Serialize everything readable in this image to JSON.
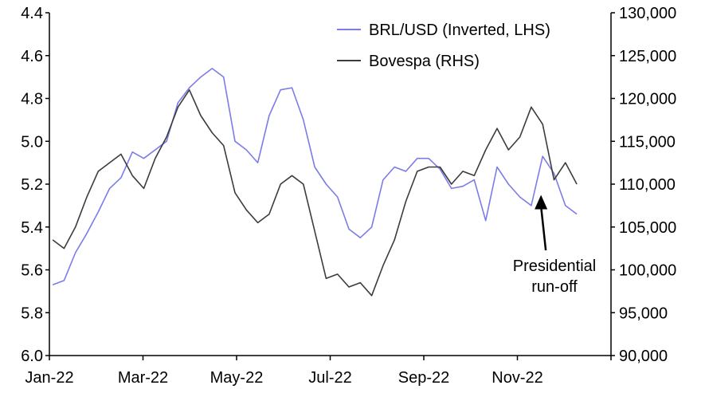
{
  "chart_data": {
    "type": "line",
    "title": "",
    "x_ticks": [
      "Jan-22",
      "Mar-22",
      "May-22",
      "Jul-22",
      "Sep-22",
      "Nov-22"
    ],
    "y_left": {
      "ticks": [
        "4.4",
        "4.6",
        "4.8",
        "5.0",
        "5.2",
        "5.4",
        "5.6",
        "5.8",
        "6.0"
      ],
      "range": [
        4.4,
        6.0
      ],
      "inverted": true
    },
    "y_right": {
      "ticks": [
        "130,000",
        "125,000",
        "120,000",
        "115,000",
        "110,000",
        "105,000",
        "100,000",
        "95,000",
        "90,000"
      ],
      "range": [
        90000,
        130000
      ]
    },
    "grid": false,
    "legend_position": "top-right",
    "series": [
      {
        "name": "BRL/USD (Inverted, LHS)",
        "axis": "left",
        "color": "#7b7ce8",
        "x": [
          "2022-01-03",
          "2022-01-10",
          "2022-01-17",
          "2022-01-24",
          "2022-01-31",
          "2022-02-07",
          "2022-02-14",
          "2022-02-21",
          "2022-02-28",
          "2022-03-07",
          "2022-03-14",
          "2022-03-21",
          "2022-03-28",
          "2022-04-04",
          "2022-04-11",
          "2022-04-18",
          "2022-04-25",
          "2022-05-02",
          "2022-05-09",
          "2022-05-16",
          "2022-05-23",
          "2022-05-30",
          "2022-06-06",
          "2022-06-13",
          "2022-06-20",
          "2022-06-27",
          "2022-07-04",
          "2022-07-11",
          "2022-07-18",
          "2022-07-25",
          "2022-08-01",
          "2022-08-08",
          "2022-08-15",
          "2022-08-22",
          "2022-08-29",
          "2022-09-05",
          "2022-09-12",
          "2022-09-19",
          "2022-09-26",
          "2022-10-03",
          "2022-10-10",
          "2022-10-17",
          "2022-10-24",
          "2022-10-31",
          "2022-11-07",
          "2022-11-14",
          "2022-11-21"
        ],
        "values": [
          5.67,
          5.65,
          5.52,
          5.43,
          5.33,
          5.22,
          5.17,
          5.05,
          5.08,
          5.04,
          5.0,
          4.82,
          4.75,
          4.7,
          4.66,
          4.7,
          5.0,
          5.04,
          5.1,
          4.88,
          4.76,
          4.75,
          4.9,
          5.12,
          5.2,
          5.26,
          5.41,
          5.45,
          5.4,
          5.18,
          5.12,
          5.14,
          5.08,
          5.08,
          5.13,
          5.22,
          5.21,
          5.18,
          5.37,
          5.12,
          5.2,
          5.26,
          5.3,
          5.07,
          5.15,
          5.3,
          5.34
        ]
      },
      {
        "name": "Bovespa (RHS)",
        "axis": "right",
        "color": "#3c3c3c",
        "x": [
          "2022-01-03",
          "2022-01-10",
          "2022-01-17",
          "2022-01-24",
          "2022-01-31",
          "2022-02-07",
          "2022-02-14",
          "2022-02-21",
          "2022-02-28",
          "2022-03-07",
          "2022-03-14",
          "2022-03-21",
          "2022-03-28",
          "2022-04-04",
          "2022-04-11",
          "2022-04-18",
          "2022-04-25",
          "2022-05-02",
          "2022-05-09",
          "2022-05-16",
          "2022-05-23",
          "2022-05-30",
          "2022-06-06",
          "2022-06-13",
          "2022-06-20",
          "2022-06-27",
          "2022-07-04",
          "2022-07-11",
          "2022-07-18",
          "2022-07-25",
          "2022-08-01",
          "2022-08-08",
          "2022-08-15",
          "2022-08-22",
          "2022-08-29",
          "2022-09-05",
          "2022-09-12",
          "2022-09-19",
          "2022-09-26",
          "2022-10-03",
          "2022-10-10",
          "2022-10-17",
          "2022-10-24",
          "2022-10-31",
          "2022-11-07",
          "2022-11-14",
          "2022-11-21"
        ],
        "values": [
          103500,
          102500,
          105000,
          108500,
          111500,
          112500,
          113500,
          111000,
          109500,
          113000,
          115500,
          119000,
          121000,
          118000,
          116000,
          114500,
          109000,
          107000,
          105500,
          106500,
          110000,
          111000,
          110000,
          104500,
          99000,
          99500,
          98000,
          98500,
          97000,
          100500,
          103500,
          108000,
          111500,
          112000,
          112000,
          110000,
          111500,
          111000,
          114000,
          116500,
          114000,
          115500,
          119000,
          117000,
          110500,
          112500,
          110000
        ]
      }
    ],
    "annotation": {
      "lines": [
        "Presidential",
        "run-off"
      ],
      "date": "2022-10-30",
      "value": 5.25
    }
  }
}
